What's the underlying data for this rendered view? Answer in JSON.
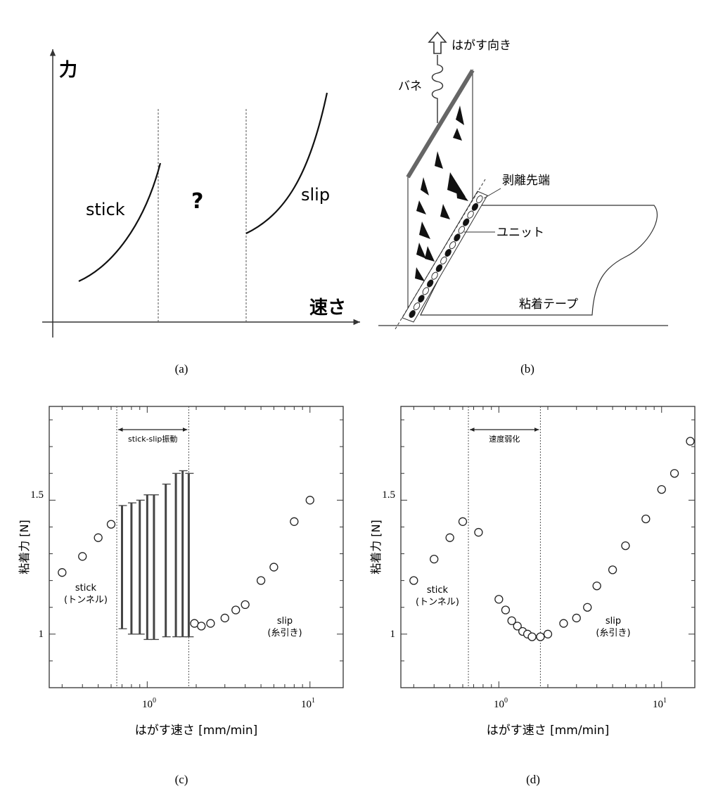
{
  "panel_a": {
    "y_axis_label": "力",
    "x_axis_label": "速さ",
    "stick_label": "stick",
    "question_label": "?",
    "slip_label": "slip",
    "caption": "(a)"
  },
  "panel_b": {
    "peel_direction_label": "はがす向き",
    "spring_label": "バネ",
    "peel_front_label": "剥離先端",
    "unit_label": "ユニット",
    "tape_label": "粘着テープ",
    "caption": "(b)"
  },
  "chart_data": [
    {
      "type": "scatter",
      "panel": "c",
      "xlabel": "はがす速さ [mm/min]",
      "ylabel": "粘着力 [N]",
      "xscale": "log",
      "xlim": [
        0.25,
        16
      ],
      "ylim": [
        0.8,
        1.85
      ],
      "x_tick_labels": [
        "10^0",
        "10^1"
      ],
      "y_tick_labels": [
        "1",
        "1.5"
      ],
      "region_labels": {
        "middle": "stick-slip振動",
        "left_line1": "stick",
        "left_line2": "(トンネル)",
        "right_line1": "slip",
        "right_line2": "(糸引き)"
      },
      "boundaries_x": [
        0.65,
        1.8
      ],
      "points": [
        {
          "x": 0.3,
          "y": 1.23
        },
        {
          "x": 0.4,
          "y": 1.29
        },
        {
          "x": 0.5,
          "y": 1.36
        },
        {
          "x": 0.6,
          "y": 1.41
        },
        {
          "x": 1.95,
          "y": 1.04
        },
        {
          "x": 2.15,
          "y": 1.03
        },
        {
          "x": 2.45,
          "y": 1.04
        },
        {
          "x": 3.0,
          "y": 1.06
        },
        {
          "x": 3.5,
          "y": 1.09
        },
        {
          "x": 4.0,
          "y": 1.11
        },
        {
          "x": 5.0,
          "y": 1.2
        },
        {
          "x": 6.0,
          "y": 1.25
        },
        {
          "x": 8.0,
          "y": 1.42
        },
        {
          "x": 10.0,
          "y": 1.5
        }
      ],
      "ranges": [
        {
          "x": 0.7,
          "min": 1.02,
          "max": 1.48
        },
        {
          "x": 0.8,
          "min": 1.0,
          "max": 1.49
        },
        {
          "x": 0.9,
          "min": 1.0,
          "max": 1.5
        },
        {
          "x": 1.0,
          "min": 0.98,
          "max": 1.52
        },
        {
          "x": 1.1,
          "min": 0.98,
          "max": 1.52
        },
        {
          "x": 1.3,
          "min": 0.99,
          "max": 1.56
        },
        {
          "x": 1.5,
          "min": 0.99,
          "max": 1.6
        },
        {
          "x": 1.65,
          "min": 0.99,
          "max": 1.61
        },
        {
          "x": 1.8,
          "min": 0.99,
          "max": 1.6
        }
      ],
      "caption": "(c)"
    },
    {
      "type": "scatter",
      "panel": "d",
      "xlabel": "はがす速さ [mm/min]",
      "ylabel": "粘着力 [N]",
      "xscale": "log",
      "xlim": [
        0.25,
        16
      ],
      "ylim": [
        0.8,
        1.85
      ],
      "x_tick_labels": [
        "10^0",
        "10^1"
      ],
      "y_tick_labels": [
        "1",
        "1.5"
      ],
      "region_labels": {
        "middle": "速度弱化",
        "left_line1": "stick",
        "left_line2": "(トンネル)",
        "right_line1": "slip",
        "right_line2": "(糸引き)"
      },
      "boundaries_x": [
        0.65,
        1.8
      ],
      "points": [
        {
          "x": 0.3,
          "y": 1.2
        },
        {
          "x": 0.4,
          "y": 1.28
        },
        {
          "x": 0.5,
          "y": 1.36
        },
        {
          "x": 0.6,
          "y": 1.42
        },
        {
          "x": 0.75,
          "y": 1.38
        },
        {
          "x": 1.0,
          "y": 1.13
        },
        {
          "x": 1.1,
          "y": 1.09
        },
        {
          "x": 1.2,
          "y": 1.05
        },
        {
          "x": 1.3,
          "y": 1.03
        },
        {
          "x": 1.4,
          "y": 1.01
        },
        {
          "x": 1.5,
          "y": 1.0
        },
        {
          "x": 1.6,
          "y": 0.99
        },
        {
          "x": 1.8,
          "y": 0.99
        },
        {
          "x": 2.0,
          "y": 1.0
        },
        {
          "x": 2.5,
          "y": 1.04
        },
        {
          "x": 3.0,
          "y": 1.06
        },
        {
          "x": 3.5,
          "y": 1.1
        },
        {
          "x": 4.0,
          "y": 1.18
        },
        {
          "x": 5.0,
          "y": 1.24
        },
        {
          "x": 6.0,
          "y": 1.33
        },
        {
          "x": 8.0,
          "y": 1.43
        },
        {
          "x": 10.0,
          "y": 1.54
        },
        {
          "x": 12.0,
          "y": 1.6
        },
        {
          "x": 15.0,
          "y": 1.72
        }
      ],
      "caption": "(d)"
    }
  ]
}
